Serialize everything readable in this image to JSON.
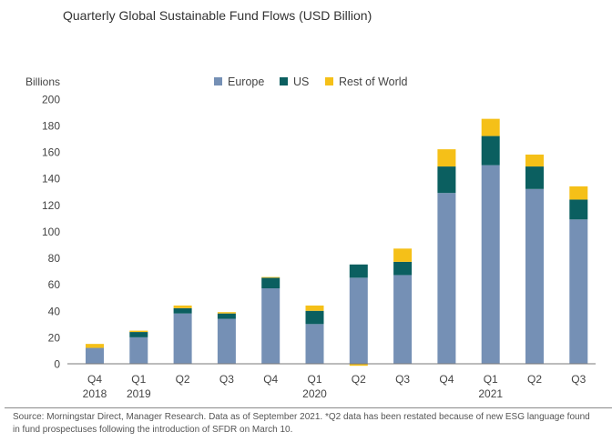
{
  "chart_data": {
    "type": "bar",
    "stacked": true,
    "title": "Quarterly Global Sustainable Fund Flows (USD Billion)",
    "ylabel": "Billions",
    "ylim": [
      -10,
      200
    ],
    "yticks": [
      0,
      20,
      40,
      60,
      80,
      100,
      120,
      140,
      160,
      180,
      200
    ],
    "grid": false,
    "legend_position": "top-center",
    "categories": [
      "Q4 2018",
      "Q1 2019",
      "Q2",
      "Q3",
      "Q4",
      "Q1 2020",
      "Q2",
      "Q3",
      "Q4",
      "Q1 2021",
      "Q2",
      "Q3"
    ],
    "tick_labels": [
      {
        "quarter": "Q4",
        "year": "2018"
      },
      {
        "quarter": "Q1",
        "year": "2019"
      },
      {
        "quarter": "Q2",
        "year": ""
      },
      {
        "quarter": "Q3",
        "year": ""
      },
      {
        "quarter": "Q4",
        "year": ""
      },
      {
        "quarter": "Q1",
        "year": "2020"
      },
      {
        "quarter": "Q2",
        "year": ""
      },
      {
        "quarter": "Q3",
        "year": ""
      },
      {
        "quarter": "Q4",
        "year": ""
      },
      {
        "quarter": "Q1",
        "year": "2021"
      },
      {
        "quarter": "Q2",
        "year": ""
      },
      {
        "quarter": "Q3",
        "year": ""
      }
    ],
    "series": [
      {
        "name": "Europe",
        "color": "#7590b5",
        "values": [
          12,
          20,
          38,
          34,
          57,
          30,
          65,
          67,
          129,
          150,
          132,
          109
        ]
      },
      {
        "name": "US",
        "color": "#0b5f60",
        "values": [
          0,
          4,
          4,
          4,
          8,
          10,
          10,
          10,
          20,
          22,
          17,
          15
        ]
      },
      {
        "name": "Rest of World",
        "color": "#f5c018",
        "values": [
          3,
          1,
          2,
          1,
          0.5,
          4,
          -1.5,
          10,
          13,
          13,
          9,
          10
        ]
      }
    ]
  },
  "footer": {
    "source": "Source: Morningstar Direct, Manager Research. Data as of September 2021. *Q2 data has been restated because of new ESG language found in fund prospectuses following the introduction of SFDR on March 10."
  }
}
